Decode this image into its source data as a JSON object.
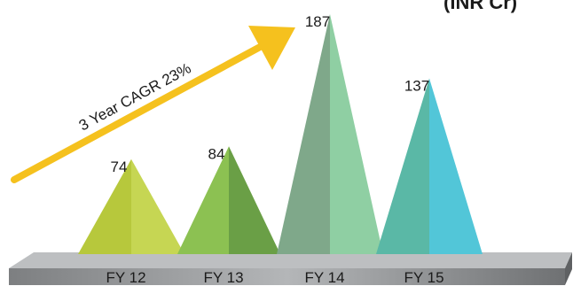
{
  "chart_data": {
    "type": "bar",
    "categories": [
      "FY 12",
      "FY 13",
      "FY 14",
      "FY 15"
    ],
    "values": [
      74,
      84,
      187,
      137
    ],
    "title": "",
    "xlabel": "",
    "ylabel": "",
    "ylim": [
      0,
      187
    ]
  },
  "annotation": {
    "arrow_text": "3 Year CAGR 23%",
    "arrow_color": "#f5c11e"
  },
  "corner_text": "(INR Cr)",
  "colors": {
    "bars": [
      [
        "#b7c83c",
        "#c6d653"
      ],
      [
        "#8cc152",
        "#6a9f46"
      ],
      [
        "#7fa88a",
        "#8fcfa3"
      ],
      [
        "#5ab8a6",
        "#52c6d8"
      ]
    ],
    "platform_top": "#a7a9ab",
    "platform_front": "#8d8f91"
  }
}
